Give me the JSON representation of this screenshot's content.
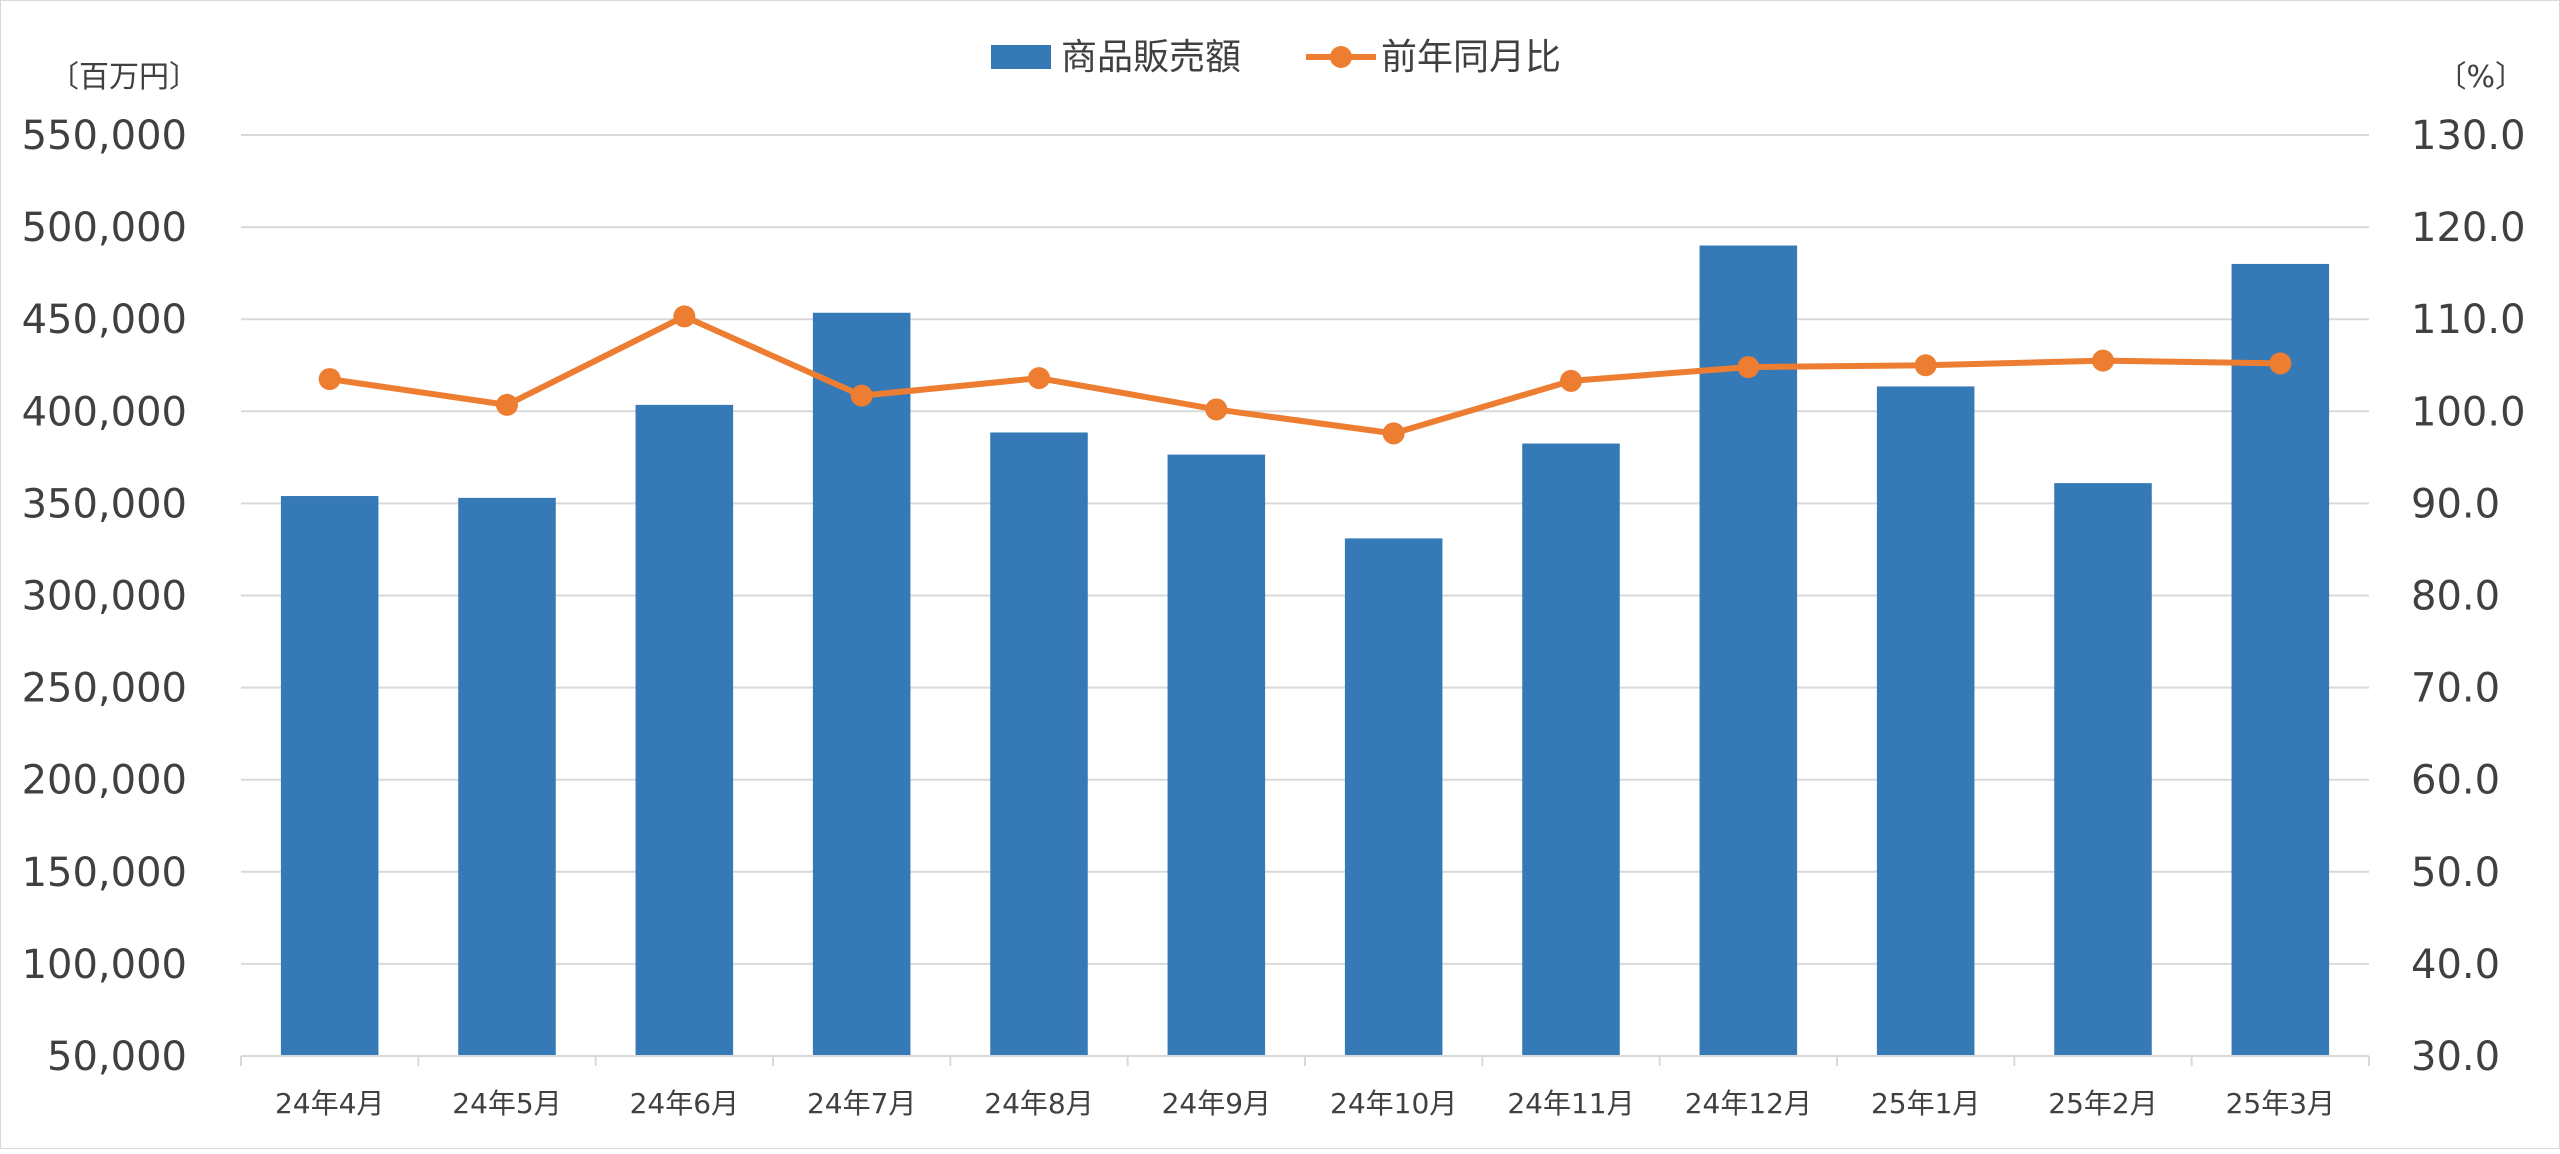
{
  "chart_data": {
    "type": "bar",
    "categories": [
      "24年4月",
      "24年5月",
      "24年6月",
      "24年7月",
      "24年8月",
      "24年9月",
      "24年10月",
      "24年11月",
      "24年12月",
      "25年1月",
      "25年2月",
      "25年3月"
    ],
    "series": [
      {
        "name": "商品販売額",
        "type": "bar",
        "axis": "left",
        "color": "#3579b6",
        "values": [
          354000,
          353000,
          403500,
          453500,
          388500,
          376500,
          331000,
          382500,
          490000,
          413500,
          361000,
          480000
        ]
      },
      {
        "name": "前年同月比",
        "type": "line",
        "axis": "right",
        "color": "#ed7d31",
        "values": [
          103.5,
          100.7,
          110.3,
          101.7,
          103.6,
          100.2,
          97.6,
          103.3,
          104.8,
          105.0,
          105.5,
          105.2
        ]
      }
    ],
    "y_left": {
      "unit_label": "〔百万円〕",
      "range": [
        50000,
        550000
      ],
      "ticks": [
        "50,000",
        "100,000",
        "150,000",
        "200,000",
        "250,000",
        "300,000",
        "350,000",
        "400,000",
        "450,000",
        "500,000",
        "550,000"
      ]
    },
    "y_right": {
      "unit_label": "〔%〕",
      "range": [
        30,
        130
      ],
      "ticks": [
        "30.0",
        "40.0",
        "50.0",
        "60.0",
        "70.0",
        "80.0",
        "90.0",
        "100.0",
        "110.0",
        "120.0",
        "130.0"
      ]
    },
    "grid": true,
    "legend_position": "top-center"
  }
}
